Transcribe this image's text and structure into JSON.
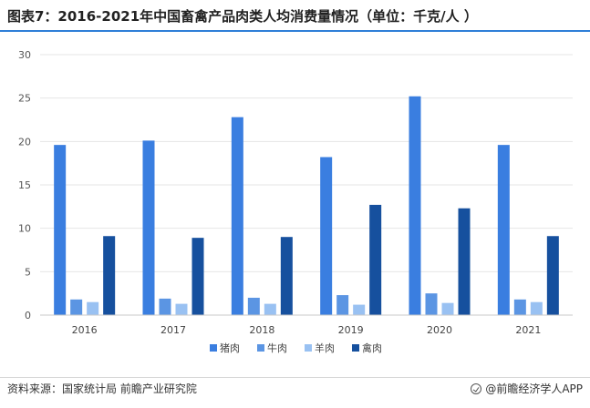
{
  "title": "图表7：2016-2021年中国畜禽产品肉类人均消费量情况（单位：千克/人 ）",
  "source": "资料来源：国家统计局 前瞻产业研究院",
  "brand": "@前瞻经济学人APP",
  "colors": {
    "series": [
      "#3a7ee0",
      "#5b95e3",
      "#99c1f2",
      "#16509e"
    ],
    "grid": "#e6e6e6",
    "axis": "#c9c9c9",
    "title_rule": "#2f7fd8"
  },
  "chart_data": {
    "type": "bar",
    "categories": [
      "2016",
      "2017",
      "2018",
      "2019",
      "2020",
      "2021"
    ],
    "series": [
      {
        "name": "猪肉",
        "values": [
          19.6,
          20.1,
          22.8,
          18.2,
          25.2,
          19.6
        ]
      },
      {
        "name": "牛肉",
        "values": [
          1.8,
          1.9,
          2.0,
          2.3,
          2.5,
          1.8
        ]
      },
      {
        "name": "羊肉",
        "values": [
          1.5,
          1.3,
          1.3,
          1.2,
          1.4,
          1.5
        ]
      },
      {
        "name": "禽肉",
        "values": [
          9.1,
          8.9,
          9.0,
          12.7,
          12.3,
          9.1
        ]
      }
    ],
    "yticks": [
      0,
      5,
      10,
      15,
      20,
      25,
      30
    ],
    "ylim": [
      0,
      30
    ],
    "grid": true,
    "legend_position": "bottom"
  }
}
